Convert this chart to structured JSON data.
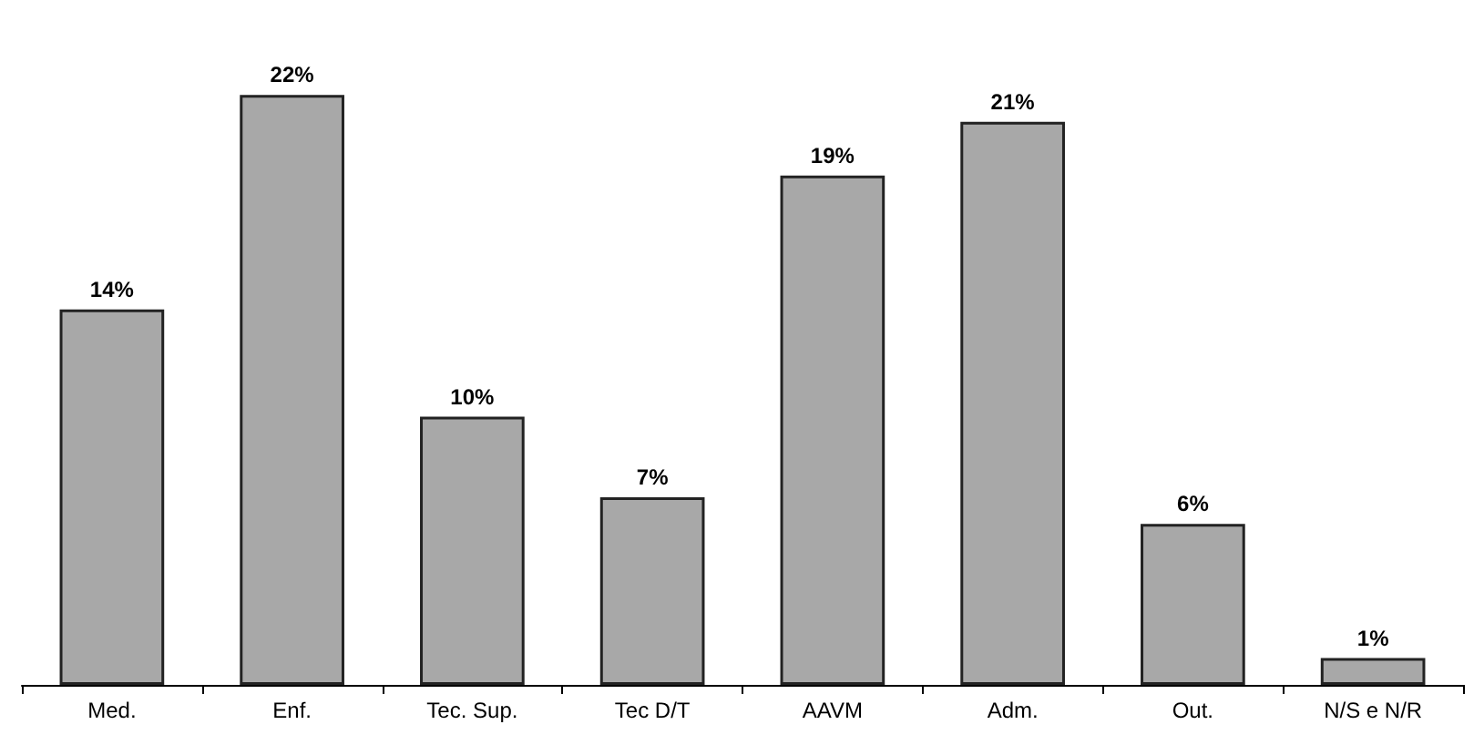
{
  "chart_data": {
    "type": "bar",
    "categories": [
      "Med.",
      "Enf.",
      "Tec. Sup.",
      "Tec D/T",
      "AAVM",
      "Adm.",
      "Out.",
      "N/S e N/R"
    ],
    "values": [
      14,
      22,
      10,
      7,
      19,
      21,
      6,
      1
    ],
    "value_labels": [
      "14%",
      "22%",
      "10%",
      "7%",
      "19%",
      "21%",
      "6%",
      "1%"
    ],
    "color": "#a8a8a8",
    "tick_labels": "x"
  }
}
